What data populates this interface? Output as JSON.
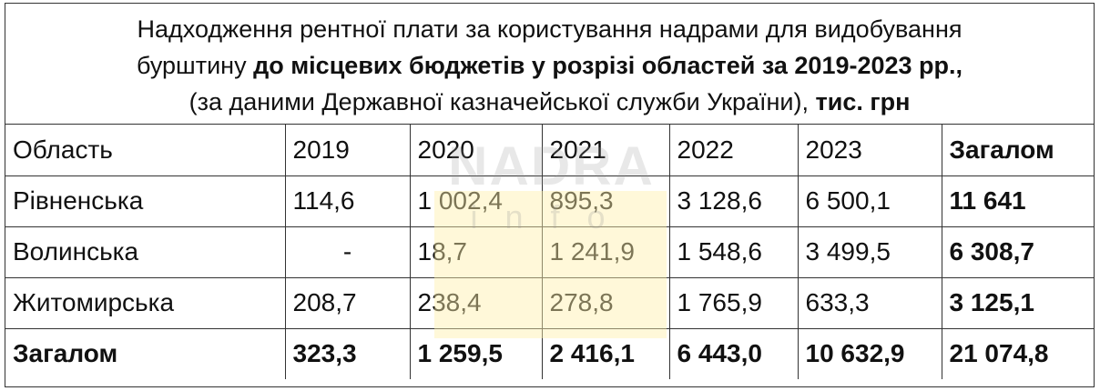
{
  "title": {
    "line1": "Надходження рентної плати за користування надрами для видобування",
    "line2_normal": "бурштину ",
    "line2_bold": "до місцевих бюджетів у розрізі областей за 2019-2023 рр.,",
    "line3_normal": "(за даними Державної казначейської служби України), ",
    "line3_bold": "тис. грн"
  },
  "watermark": {
    "main": "NADRA",
    "sub": "info"
  },
  "table": {
    "header": [
      "Область",
      "2019",
      "2020",
      "2021",
      "2022",
      "2023",
      "Загалом"
    ],
    "rows": [
      [
        "Рівненська",
        "114,6",
        "1 002,4",
        "895,3",
        "3 128,6",
        "6 500,1",
        "11 641"
      ],
      [
        "Волинська",
        "-",
        "18,7",
        "1 241,9",
        "1 548,6",
        "3 499,5",
        "6 308,7"
      ],
      [
        "Житомирська",
        "208,7",
        "238,4",
        "278,8",
        "1 765,9",
        "633,3",
        "3 125,1"
      ]
    ],
    "total": [
      "Загалом",
      "323,3",
      "1 259,5",
      "2 416,1",
      "6 443,0",
      "10 632,9",
      "21 074,8"
    ]
  }
}
